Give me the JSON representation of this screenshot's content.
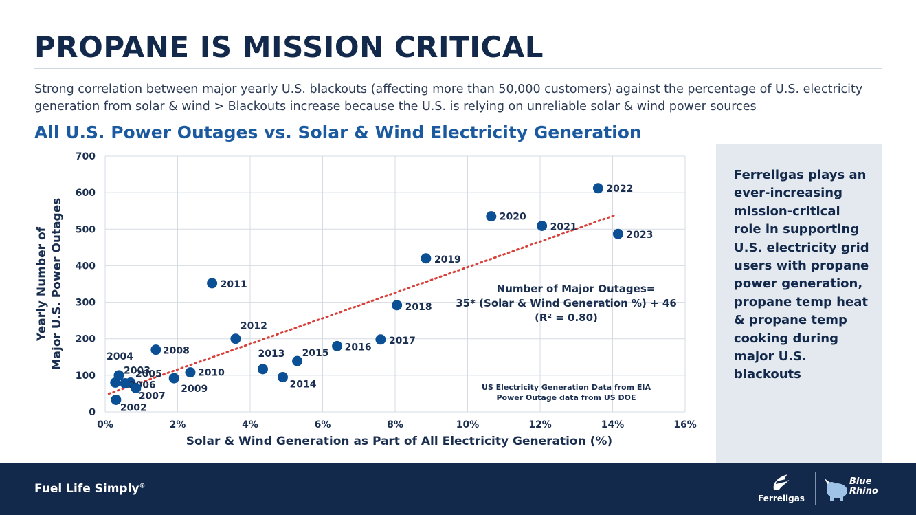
{
  "header": {
    "title": "PROPANE IS MISSION CRITICAL",
    "subtitle": "Strong correlation between major yearly U.S. blackouts (affecting more than 50,000 customers) against the percentage of U.S. electricity generation from solar & wind > Blackouts increase because the U.S. is relying on unreliable solar & wind power sources"
  },
  "chart_data": {
    "type": "scatter",
    "title": "All U.S. Power Outages vs. Solar & Wind Electricity Generation",
    "xlabel": "Solar & Wind Generation as Part of All Electricity Generation (%)",
    "ylabel_lines": [
      "Yearly Number of",
      "Major U.S. Power Outages"
    ],
    "xlim": [
      0,
      16
    ],
    "ylim": [
      0,
      700
    ],
    "x_ticks": [
      0,
      2,
      4,
      6,
      8,
      10,
      12,
      14,
      16
    ],
    "x_tick_labels": [
      "0%",
      "2%",
      "4%",
      "6%",
      "8%",
      "10%",
      "12%",
      "14%",
      "16%"
    ],
    "y_ticks": [
      0,
      100,
      200,
      300,
      400,
      500,
      600,
      700
    ],
    "y_tick_labels": [
      "0",
      "100",
      "200",
      "300",
      "400",
      "500",
      "600",
      "700"
    ],
    "grid": true,
    "marker_color": "#0b4f94",
    "trendline_color": "#d9403a",
    "points": [
      {
        "label": "2002",
        "x": 0.3,
        "y": 33
      },
      {
        "label": "2003",
        "x": 0.55,
        "y": 78
      },
      {
        "label": "2004",
        "x": 0.38,
        "y": 100
      },
      {
        "label": "2005",
        "x": 0.7,
        "y": 80
      },
      {
        "label": "2006",
        "x": 0.28,
        "y": 80
      },
      {
        "label": "2007",
        "x": 0.85,
        "y": 65
      },
      {
        "label": "2008",
        "x": 1.4,
        "y": 170
      },
      {
        "label": "2009",
        "x": 1.9,
        "y": 92
      },
      {
        "label": "2010",
        "x": 2.35,
        "y": 108
      },
      {
        "label": "2011",
        "x": 2.95,
        "y": 352
      },
      {
        "label": "2012",
        "x": 3.6,
        "y": 200
      },
      {
        "label": "2013",
        "x": 4.35,
        "y": 117
      },
      {
        "label": "2014",
        "x": 4.9,
        "y": 95
      },
      {
        "label": "2015",
        "x": 5.3,
        "y": 139
      },
      {
        "label": "2016",
        "x": 6.4,
        "y": 180
      },
      {
        "label": "2017",
        "x": 7.6,
        "y": 198
      },
      {
        "label": "2018",
        "x": 8.05,
        "y": 292
      },
      {
        "label": "2019",
        "x": 8.85,
        "y": 420
      },
      {
        "label": "2020",
        "x": 10.65,
        "y": 535
      },
      {
        "label": "2021",
        "x": 12.05,
        "y": 509
      },
      {
        "label": "2022",
        "x": 13.6,
        "y": 612
      },
      {
        "label": "2023",
        "x": 14.15,
        "y": 487
      }
    ],
    "trendline": {
      "slope": 35,
      "intercept": 46,
      "x_start": 0.1,
      "x_end": 14.1
    },
    "equation_lines": [
      "Number of Major Outages=",
      "35* (Solar & Wind Generation %) + 46",
      "(R² = 0.80)"
    ],
    "source_lines": [
      "US Electricity Generation Data from EIA",
      "Power Outage data from US DOE"
    ]
  },
  "side_panel": {
    "text": "Ferrellgas plays an ever-increasing mission-critical role in supporting U.S. electricity grid users with propane power generation, propane temp heat & propane temp cooking during major U.S. blackouts"
  },
  "footer": {
    "tagline": "Fuel Life Simply",
    "tagline_mark": "®",
    "logo_ferrellgas": "Ferrellgas",
    "logo_blue_rhino": "Blue Rhino",
    "logo_blue_rhino_line1": "Blue",
    "logo_blue_rhino_line2": "Rhino"
  }
}
